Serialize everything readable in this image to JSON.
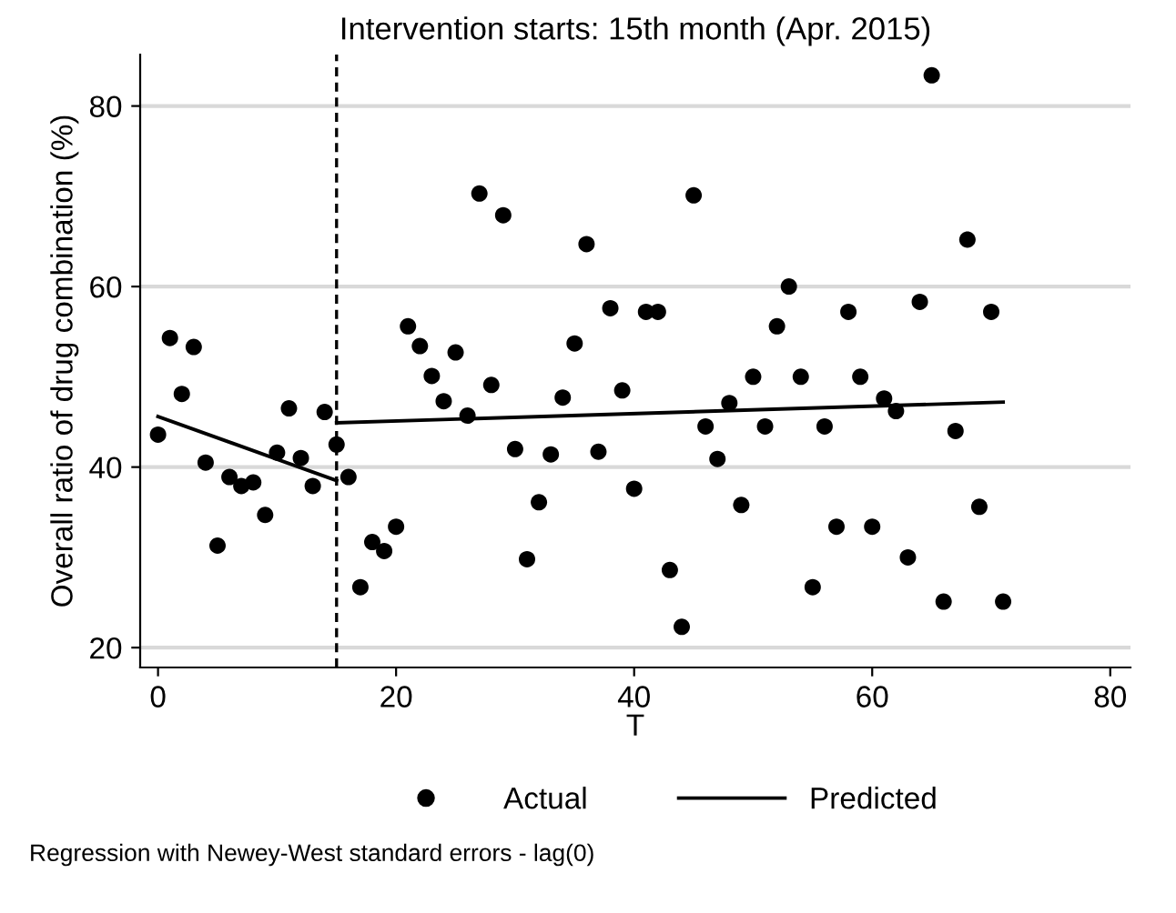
{
  "chart_data": {
    "type": "scatter",
    "title": "Intervention starts: 15th month (Apr. 2015)",
    "xlabel": "T",
    "ylabel": "Overall ratio of drug combination (%)",
    "series": [
      {
        "name": "Actual",
        "color": "#000000",
        "marker": "circle",
        "x": [
          0,
          1,
          2,
          3,
          4,
          5,
          6,
          7,
          8,
          9,
          10,
          11,
          12,
          13,
          14,
          15,
          16,
          17,
          18,
          19,
          20,
          21,
          22,
          23,
          24,
          25,
          26,
          27,
          28,
          29,
          30,
          31,
          32,
          33,
          34,
          35,
          36,
          37,
          38,
          39,
          40,
          41,
          42,
          43,
          44,
          45,
          46,
          47,
          48,
          49,
          50,
          51,
          52,
          53,
          54,
          55,
          56,
          57,
          58,
          59,
          60,
          61,
          62,
          63,
          64,
          65,
          66,
          67,
          68,
          69,
          70,
          71
        ],
        "values": [
          43.6,
          54.3,
          48.1,
          53.3,
          40.5,
          31.3,
          38.9,
          37.9,
          38.3,
          34.7,
          41.6,
          46.5,
          41.0,
          37.9,
          46.1,
          42.5,
          38.9,
          26.7,
          31.7,
          30.7,
          33.4,
          55.6,
          53.4,
          50.1,
          47.3,
          52.7,
          45.7,
          70.3,
          49.1,
          67.9,
          42.0,
          29.8,
          36.1,
          41.4,
          47.7,
          53.7,
          64.7,
          41.7,
          57.6,
          48.5,
          37.6,
          57.2,
          57.2,
          28.6,
          22.3,
          70.1,
          44.5,
          40.9,
          47.1,
          35.8,
          50.0,
          44.5,
          55.6,
          60.0,
          50.0,
          26.7,
          44.5,
          33.4,
          57.2,
          50.0,
          33.4,
          47.6,
          46.2,
          30.0,
          58.3,
          83.4,
          25.1,
          44.0,
          65.2,
          35.6,
          57.2,
          25.1
        ]
      },
      {
        "name": "Predicted",
        "type": "line",
        "color": "#000000",
        "marker": "none",
        "line_style": "solid",
        "x": [
          0,
          15
        ],
        "values": [
          45.6,
          38.5
        ]
      },
      {
        "type": "line",
        "color": "#000000",
        "marker": "none",
        "line_style": "solid",
        "x": [
          15,
          71
        ],
        "values": [
          44.9,
          47.2
        ]
      }
    ],
    "xlim": [
      -1.5,
      81.7
    ],
    "ylim": [
      17.8,
      85.7
    ],
    "xticks": [
      0,
      20,
      40,
      60,
      80
    ],
    "yticks": [
      20,
      40,
      60,
      80
    ],
    "grid": "y",
    "legend": "bottom",
    "ref_lines": [
      {
        "axis": "x",
        "value": 15,
        "color": "#000000",
        "line_style": "dashed"
      }
    ],
    "annotations": [
      "Regression with Newey-West standard errors - lag(0)"
    ]
  }
}
